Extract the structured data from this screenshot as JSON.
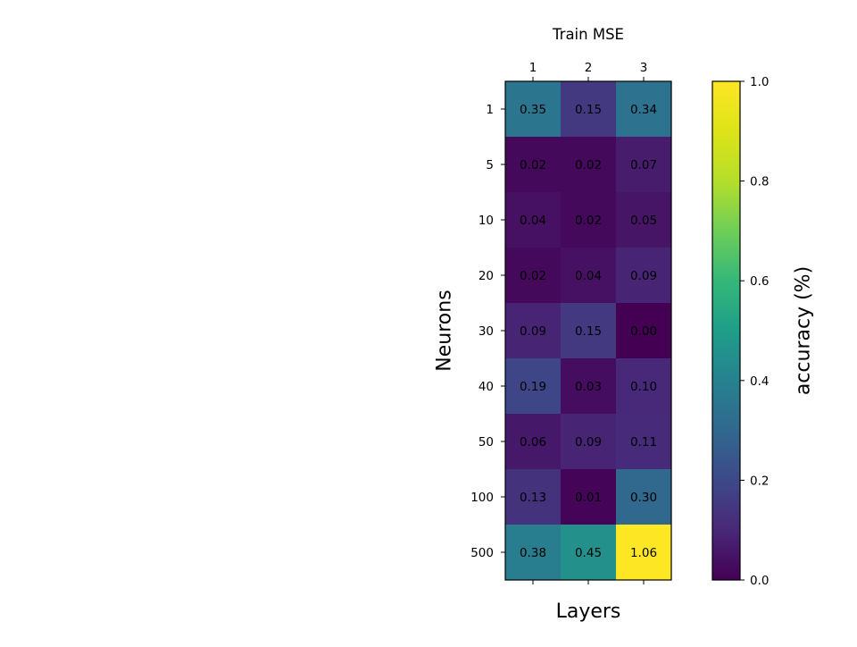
{
  "chart_data": {
    "type": "heatmap",
    "title": "Train MSE",
    "xlabel": "Layers",
    "ylabel": "Neurons",
    "x": [
      "1",
      "2",
      "3"
    ],
    "y": [
      "1",
      "5",
      "10",
      "20",
      "30",
      "40",
      "50",
      "100",
      "500"
    ],
    "values": [
      [
        0.35,
        0.15,
        0.34
      ],
      [
        0.02,
        0.02,
        0.07
      ],
      [
        0.04,
        0.02,
        0.05
      ],
      [
        0.02,
        0.04,
        0.09
      ],
      [
        0.09,
        0.15,
        0.0
      ],
      [
        0.19,
        0.03,
        0.1
      ],
      [
        0.06,
        0.09,
        0.11
      ],
      [
        0.13,
        0.01,
        0.3
      ],
      [
        0.38,
        0.45,
        1.06
      ]
    ],
    "cell_labels": [
      [
        "0.35",
        "0.15",
        "0.34"
      ],
      [
        "0.02",
        "0.02",
        "0.07"
      ],
      [
        "0.04",
        "0.02",
        "0.05"
      ],
      [
        "0.02",
        "0.04",
        "0.09"
      ],
      [
        "0.09",
        "0.15",
        "0.00"
      ],
      [
        "0.19",
        "0.03",
        "0.10"
      ],
      [
        "0.06",
        "0.09",
        "0.11"
      ],
      [
        "0.13",
        "0.01",
        "0.30"
      ],
      [
        "0.38",
        "0.45",
        "1.06"
      ]
    ],
    "colormap": "viridis",
    "color_range": [
      0.0,
      1.0
    ],
    "x_ticks_position": "top",
    "grid": false,
    "colorbar": {
      "label": "accuracy (%)",
      "ticks": [
        "0.0",
        "0.2",
        "0.4",
        "0.6",
        "0.8",
        "1.0"
      ],
      "tick_values": [
        0.0,
        0.2,
        0.4,
        0.6,
        0.8,
        1.0
      ],
      "placement": "right"
    }
  }
}
